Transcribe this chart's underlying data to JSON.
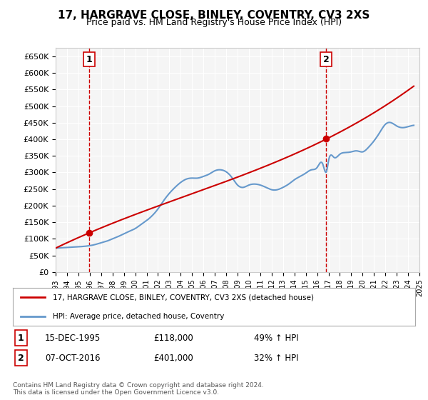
{
  "title": "17, HARGRAVE CLOSE, BINLEY, COVENTRY, CV3 2XS",
  "subtitle": "Price paid vs. HM Land Registry's House Price Index (HPI)",
  "sale1_date": "1995-12-15",
  "sale1_price": 118000,
  "sale1_label": "1",
  "sale1_note": "15-DEC-1995    £118,000      49% ↑ HPI",
  "sale2_date": "2016-10-07",
  "sale2_price": 401000,
  "sale2_label": "2",
  "sale2_note": "07-OCT-2016    £401,000      32% ↑ HPI",
  "legend_line1": "17, HARGRAVE CLOSE, BINLEY, COVENTRY, CV3 2XS (detached house)",
  "legend_line2": "HPI: Average price, detached house, Coventry",
  "footer": "Contains HM Land Registry data © Crown copyright and database right 2024.\nThis data is licensed under the Open Government Licence v3.0.",
  "price_line_color": "#cc0000",
  "hpi_line_color": "#6699cc",
  "sale_marker_color": "#cc0000",
  "vline_color": "#cc0000",
  "ylim": [
    0,
    675000
  ],
  "ytick_step": 50000,
  "background_color": "#ffffff",
  "plot_bg_color": "#f5f5f5",
  "grid_color": "#ffffff",
  "hpi_data_x": [
    1993.0,
    1994.0,
    1995.0,
    1995.96,
    1996.5,
    1997.0,
    1997.5,
    1998.0,
    1998.5,
    1999.0,
    1999.5,
    2000.0,
    2000.5,
    2001.0,
    2001.5,
    2002.0,
    2002.5,
    2003.0,
    2003.5,
    2004.0,
    2004.5,
    2005.0,
    2005.5,
    2006.0,
    2006.5,
    2007.0,
    2007.5,
    2008.0,
    2008.5,
    2009.0,
    2009.5,
    2010.0,
    2010.5,
    2011.0,
    2011.5,
    2012.0,
    2012.5,
    2013.0,
    2013.5,
    2014.0,
    2014.5,
    2015.0,
    2015.5,
    2016.0,
    2016.5,
    2016.83,
    2017.0,
    2017.5,
    2018.0,
    2018.5,
    2019.0,
    2019.5,
    2020.0,
    2020.5,
    2021.0,
    2021.5,
    2022.0,
    2022.5,
    2023.0,
    2023.5,
    2024.0,
    2024.5
  ],
  "hpi_data_y": [
    72000,
    74000,
    76000,
    79200,
    83000,
    88000,
    93000,
    100000,
    107000,
    115000,
    123000,
    131000,
    143000,
    155000,
    170000,
    190000,
    215000,
    237000,
    255000,
    270000,
    280000,
    283000,
    283000,
    288000,
    295000,
    305000,
    308000,
    302000,
    285000,
    262000,
    255000,
    262000,
    265000,
    262000,
    255000,
    248000,
    248000,
    255000,
    265000,
    278000,
    288000,
    298000,
    308000,
    315000,
    325000,
    303400,
    335000,
    345000,
    355000,
    360000,
    362000,
    365000,
    362000,
    375000,
    395000,
    420000,
    445000,
    450000,
    440000,
    435000,
    438000,
    442000
  ],
  "price_data_x": [
    1993.0,
    1995.96,
    2016.83,
    2024.5
  ],
  "price_data_y": [
    72000,
    118000,
    401000,
    560000
  ],
  "xtick_years": [
    1993,
    1994,
    1995,
    1996,
    1997,
    1998,
    1999,
    2000,
    2001,
    2002,
    2003,
    2004,
    2005,
    2006,
    2007,
    2008,
    2009,
    2010,
    2011,
    2012,
    2013,
    2014,
    2015,
    2016,
    2017,
    2018,
    2019,
    2020,
    2021,
    2022,
    2023,
    2024,
    2025
  ]
}
